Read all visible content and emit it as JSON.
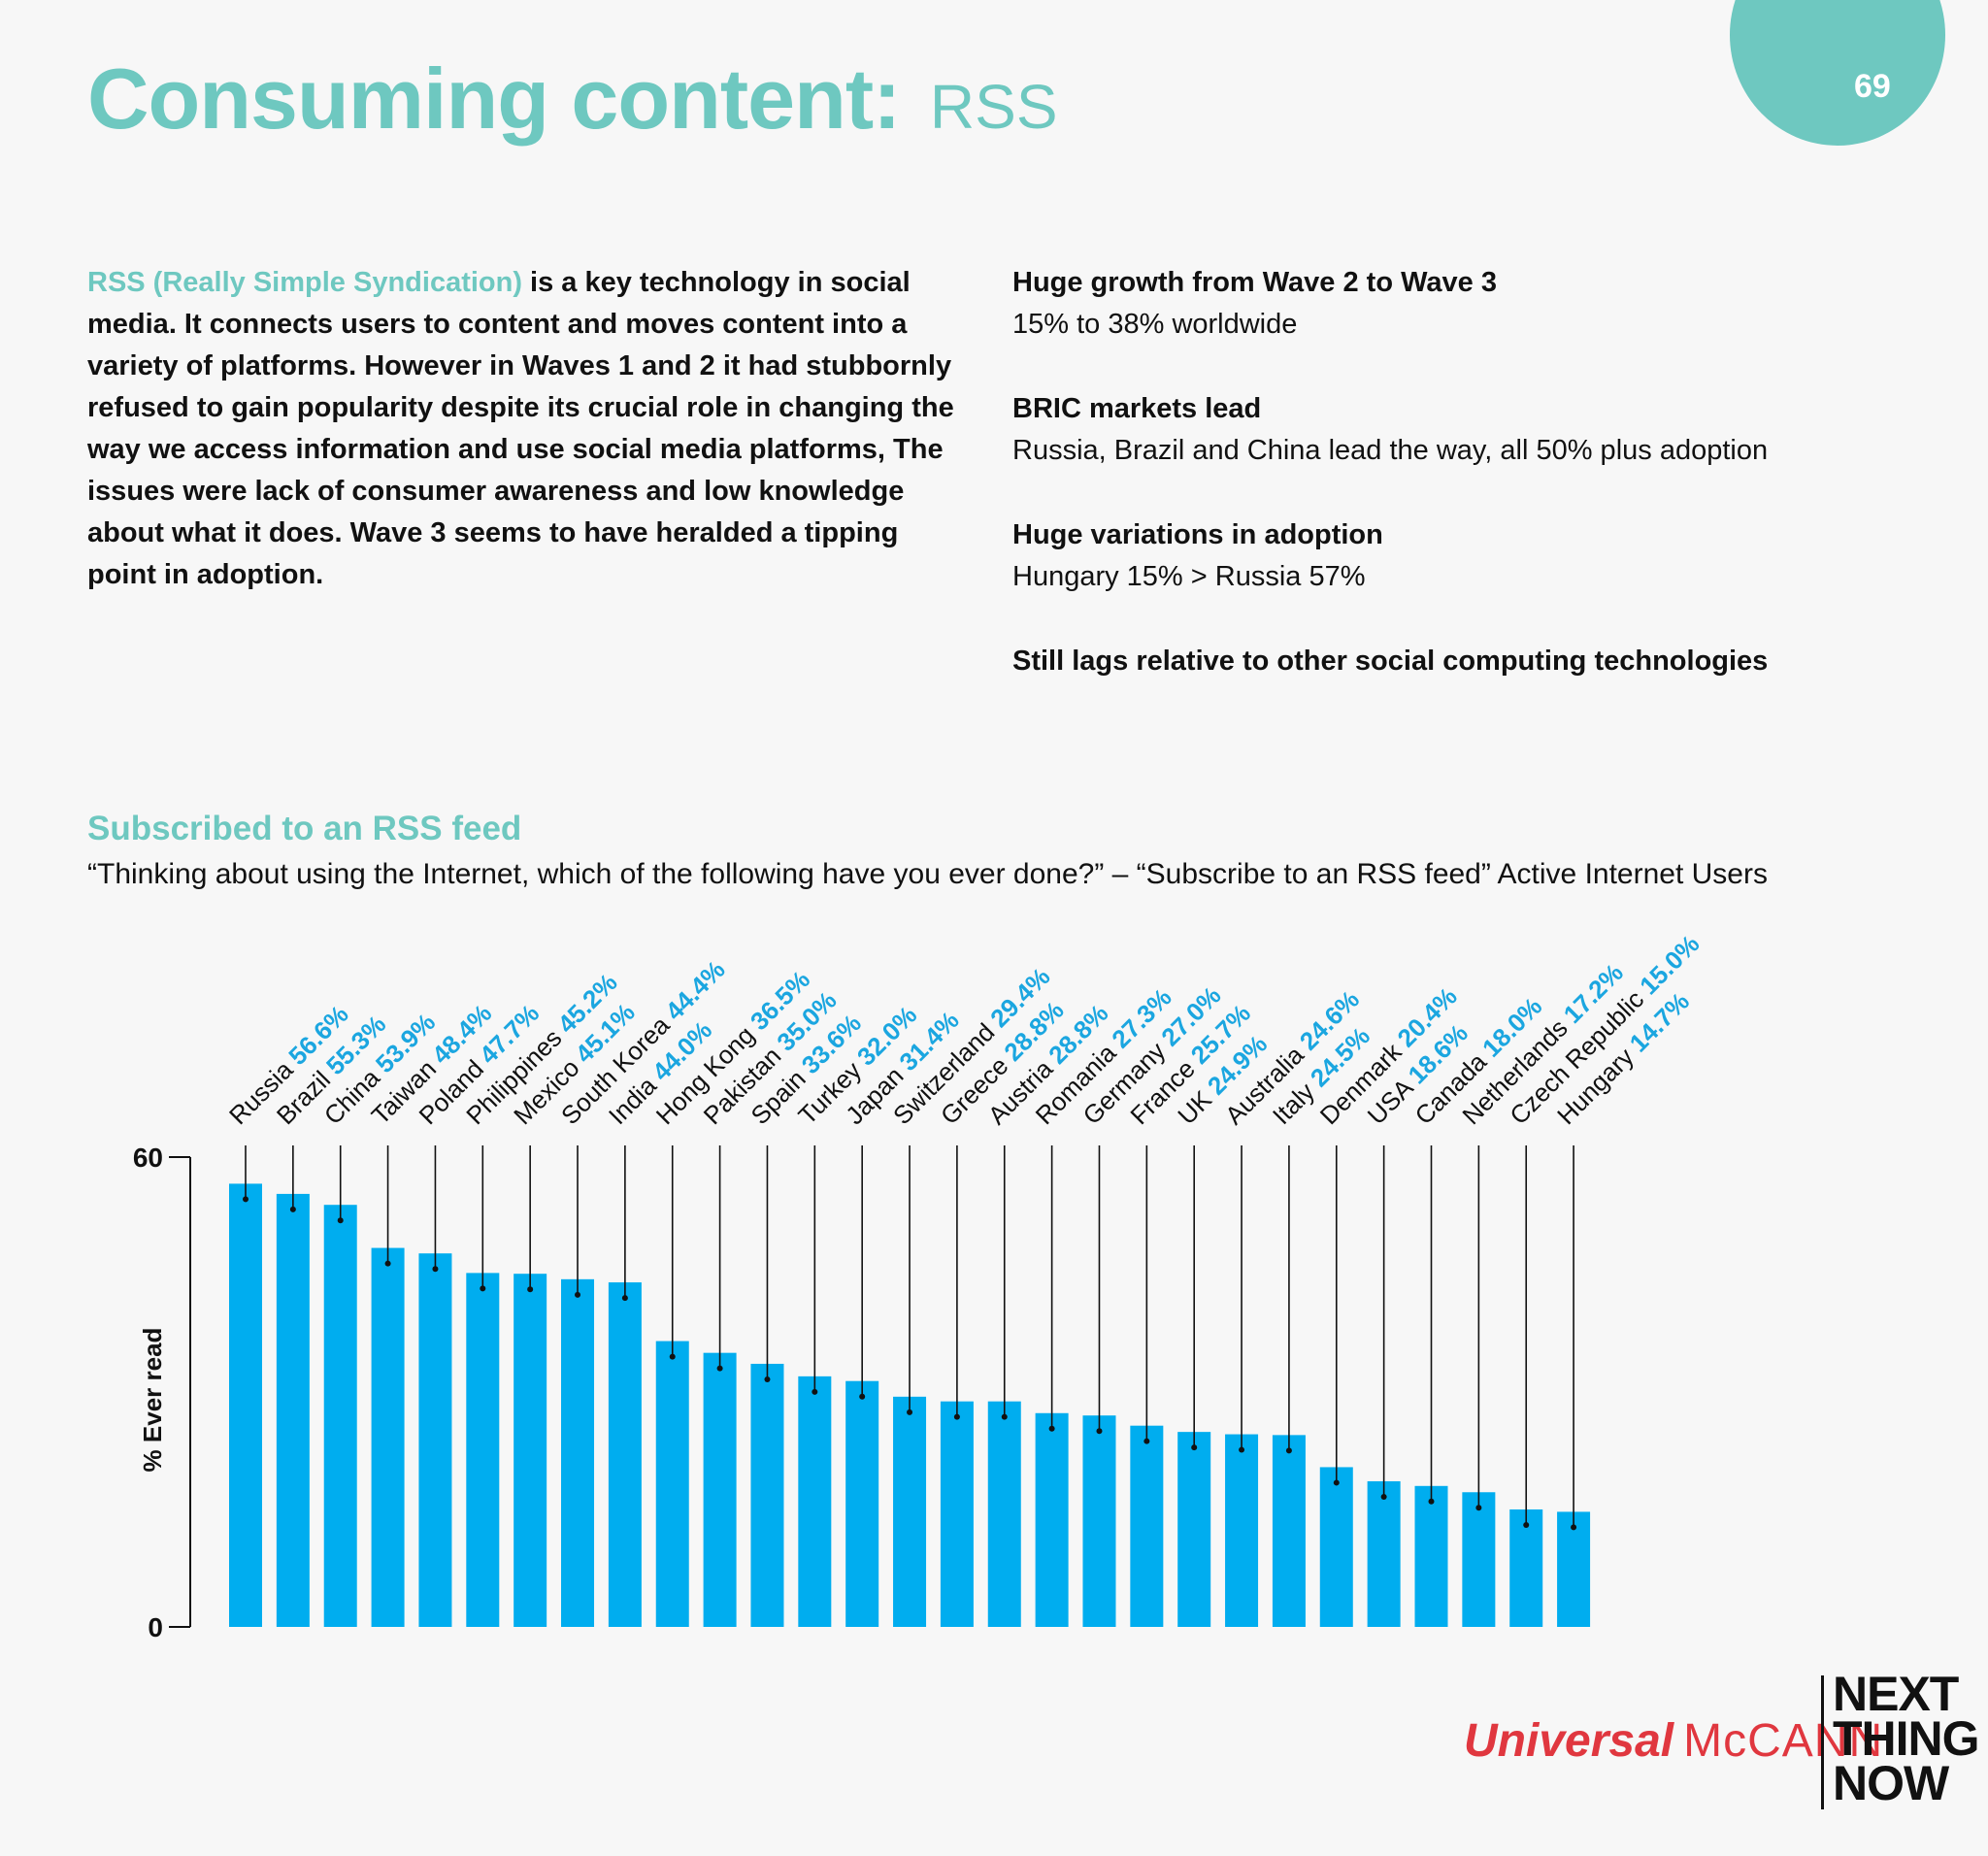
{
  "page": {
    "number": "69"
  },
  "header": {
    "title_main": "Consuming content:",
    "title_sub": "RSS"
  },
  "intro": {
    "highlight": "RSS (Really Simple Syndication)",
    "text": " is a key technology in social media. It connects users to content and moves content into a variety of platforms. However in Waves 1 and 2 it had stubbornly refused to gain popularity despite its crucial role in changing the way we access information and use social media platforms, The issues were lack of consumer awareness and low knowledge about what it does. Wave 3 seems to have heralded a tipping point in adoption."
  },
  "points": [
    {
      "heading": "Huge growth from Wave 2 to Wave 3",
      "body": "15% to 38% worldwide"
    },
    {
      "heading": "BRIC markets lead",
      "body": "Russia, Brazil and China lead the way, all 50% plus adoption"
    },
    {
      "heading": "Huge variations in adoption",
      "body": "Hungary 15% > Russia 57%"
    },
    {
      "heading": "Still lags relative to other social computing technologies",
      "body": ""
    }
  ],
  "chart_section": {
    "title": "Subscribed to an RSS feed",
    "subtitle": "“Thinking about using the Internet, which of the following have you ever done?” – “Subscribe to an RSS feed” Active Internet Users"
  },
  "chart_data": {
    "type": "bar",
    "title": "Subscribed to an RSS feed",
    "xlabel": "",
    "ylabel": "% Ever read",
    "ylim": [
      0,
      60
    ],
    "yticks": [
      "0",
      "60"
    ],
    "bar_color": "#00adef",
    "value_color": "#1ba6e0",
    "categories": [
      "Russia",
      "Brazil",
      "China",
      "Taiwan",
      "Poland",
      "Philippines",
      "Mexico",
      "South Korea",
      "India",
      "Hong Kong",
      "Pakistan",
      "Spain",
      "Turkey",
      "Japan",
      "Switzerland",
      "Greece",
      "Austria",
      "Romania",
      "Germany",
      "France",
      "UK",
      "Australia",
      "Italy",
      "Denmark",
      "USA",
      "Canada",
      "Netherlands",
      "Czech Republic",
      "Hungary"
    ],
    "values": [
      56.6,
      55.3,
      53.9,
      48.4,
      47.7,
      45.2,
      45.1,
      44.4,
      44.0,
      36.5,
      35.0,
      33.6,
      32.0,
      31.4,
      29.4,
      28.8,
      28.8,
      27.3,
      27.0,
      25.7,
      24.9,
      24.6,
      24.5,
      20.4,
      18.6,
      18.0,
      17.2,
      15.0,
      14.7
    ],
    "value_labels": [
      "56.6%",
      "55.3%",
      "53.9%",
      "48.4%",
      "47.7%",
      "45.2%",
      "45.1%",
      "44.4%",
      "44.0%",
      "36.5%",
      "35.0%",
      "33.6%",
      "32.0%",
      "31.4%",
      "29.4%",
      "28.8%",
      "28.8%",
      "27.3%",
      "27.0%",
      "25.7%",
      "24.9%",
      "24.6%",
      "24.5%",
      "20.4%",
      "18.6%",
      "18.0%",
      "17.2%",
      "15.0%",
      "14.7%"
    ]
  },
  "footer": {
    "brand_1": "Universal",
    "brand_2": "McCANN",
    "tag_lines": [
      "NEXT",
      "THING",
      "NOW"
    ]
  },
  "colors": {
    "accent": "#6ec8c0",
    "bar": "#00adef",
    "brand_red": "#e0373f"
  }
}
